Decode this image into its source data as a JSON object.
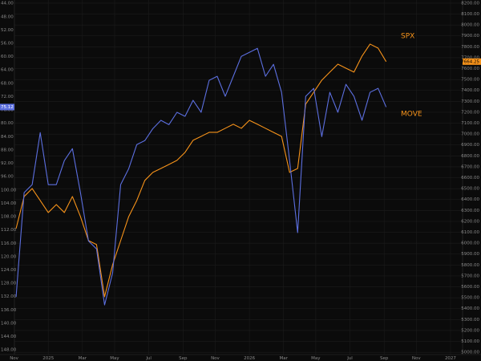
{
  "chart_data": {
    "type": "line",
    "x": [
      2024.84,
      2024.88,
      2024.92,
      2024.96,
      2025.0,
      2025.04,
      2025.08,
      2025.12,
      2025.16,
      2025.2,
      2025.24,
      2025.28,
      2025.32,
      2025.36,
      2025.4,
      2025.44,
      2025.48,
      2025.52,
      2025.56,
      2025.6,
      2025.64,
      2025.68,
      2025.72,
      2025.76,
      2025.8,
      2025.84,
      2025.88,
      2025.92,
      2025.96,
      2026.0,
      2026.04,
      2026.08,
      2026.12,
      2026.16,
      2026.2,
      2026.24,
      2026.28,
      2026.32,
      2026.36,
      2026.4,
      2026.44,
      2026.48,
      2026.52,
      2026.56,
      2026.6,
      2026.64,
      2026.68
    ],
    "series": [
      {
        "name": "SPX",
        "color": "#f7931a",
        "axis": "y2",
        "values": [
          6134,
          6428,
          6501,
          6391,
          6281,
          6354,
          6281,
          6428,
          6244,
          6024,
          5987,
          5509,
          5803,
          6024,
          6244,
          6391,
          6575,
          6649,
          6685,
          6722,
          6759,
          6832,
          6943,
          6979,
          7016,
          7016,
          7053,
          7090,
          7053,
          7126,
          7090,
          7053,
          7016,
          6979,
          6649,
          6685,
          7274,
          7384,
          7494,
          7568,
          7641,
          7604,
          7568,
          7715,
          7825,
          7788,
          7664.25
        ]
      },
      {
        "name": "MOVE",
        "color": "#5c6fe0",
        "values": [
          132.1,
          100.8,
          98.4,
          82.8,
          98.4,
          98.4,
          91.2,
          87.6,
          100.8,
          115.3,
          117.7,
          134.5,
          124.9,
          98.4,
          93.6,
          86.4,
          85.2,
          81.6,
          79.1,
          80.4,
          76.7,
          77.9,
          73.1,
          76.7,
          67.1,
          65.9,
          71.9,
          65.9,
          59.9,
          58.7,
          57.5,
          65.9,
          62.3,
          70.7,
          91.2,
          112.8,
          71.9,
          69.5,
          84.0,
          70.7,
          76.7,
          68.3,
          71.9,
          79.1,
          70.7,
          69.5,
          75.12
        ]
      }
    ],
    "series_label_color": "#f7931a",
    "grid": true,
    "xlim": [
      2024.76,
      2027.06
    ],
    "xticks": [
      {
        "value": 2024.83,
        "label": "Nov"
      },
      2025,
      {
        "value": 2025.17,
        "label": "Mar"
      },
      {
        "value": 2025.33,
        "label": "May"
      },
      {
        "value": 2025.5,
        "label": "Jul"
      },
      {
        "value": 2025.67,
        "label": "Sep"
      },
      {
        "value": 2025.83,
        "label": "Nov"
      },
      2026,
      {
        "value": 2026.17,
        "label": "Mar"
      },
      {
        "value": 2026.33,
        "label": "May"
      },
      {
        "value": 2026.5,
        "label": "Jul"
      },
      {
        "value": 2026.67,
        "label": "Sep"
      },
      {
        "value": 2026.83,
        "label": "Nov"
      },
      2027
    ],
    "ylim": [
      149.4,
      43.0
    ],
    "yticks": [
      {
        "value": 44,
        "label": "44.00"
      },
      {
        "value": 48,
        "label": "48.00"
      },
      {
        "value": 52,
        "label": "52.00"
      },
      {
        "value": 56,
        "label": "56.00"
      },
      {
        "value": 60,
        "label": "60.00"
      },
      {
        "value": 64,
        "label": "64.00"
      },
      {
        "value": 68,
        "label": "68.00"
      },
      {
        "value": 72,
        "label": "72.00"
      },
      {
        "value": 76,
        "label": "76.00"
      },
      {
        "value": 80,
        "label": "80.00"
      },
      {
        "value": 84,
        "label": "84.00"
      },
      {
        "value": 88,
        "label": "88.00"
      },
      {
        "value": 92,
        "label": "92.00"
      },
      {
        "value": 96,
        "label": "96.00"
      },
      {
        "value": 100,
        "label": "100.00"
      },
      {
        "value": 104,
        "label": "104.00"
      },
      {
        "value": 108,
        "label": "108.00"
      },
      {
        "value": 112,
        "label": "112.00"
      },
      {
        "value": 116,
        "label": "116.00"
      },
      {
        "value": 120,
        "label": "120.00"
      },
      {
        "value": 124,
        "label": "124.00"
      },
      {
        "value": 128,
        "label": "128.00"
      },
      {
        "value": 132,
        "label": "132.00"
      },
      {
        "value": 136,
        "label": "136.00"
      },
      {
        "value": 140,
        "label": "140.00"
      },
      {
        "value": 144,
        "label": "144.00"
      },
      {
        "value": 148,
        "label": "148.00"
      }
    ],
    "y2lim": [
      4979,
      8229
    ],
    "y2ticks": [
      {
        "value": 5000,
        "label": "5000.00"
      },
      {
        "value": 5100,
        "label": "5100.00"
      },
      {
        "value": 5200,
        "label": "5200.00"
      },
      {
        "value": 5300,
        "label": "5300.00"
      },
      {
        "value": 5400,
        "label": "5400.00"
      },
      {
        "value": 5500,
        "label": "5500.00"
      },
      {
        "value": 5600,
        "label": "5600.00"
      },
      {
        "value": 5700,
        "label": "5700.00"
      },
      {
        "value": 5800,
        "label": "5800.00"
      },
      {
        "value": 5900,
        "label": "5900.00"
      },
      {
        "value": 6000,
        "label": "6000.00"
      },
      {
        "value": 6100,
        "label": "6100.00"
      },
      {
        "value": 6200,
        "label": "6200.00"
      },
      {
        "value": 6300,
        "label": "6300.00"
      },
      {
        "value": 6400,
        "label": "6400.00"
      },
      {
        "value": 6500,
        "label": "6500.00"
      },
      {
        "value": 6600,
        "label": "6600.00"
      },
      {
        "value": 6700,
        "label": "6700.00"
      },
      {
        "value": 6800,
        "label": "6800.00"
      },
      {
        "value": 6900,
        "label": "6900.00"
      },
      {
        "value": 7000,
        "label": "7000.00"
      },
      {
        "value": 7100,
        "label": "7100.00"
      },
      {
        "value": 7200,
        "label": "7200.00"
      },
      {
        "value": 7300,
        "label": "7300.00"
      },
      {
        "value": 7400,
        "label": "7400.00"
      },
      {
        "value": 7500,
        "label": "7500.00"
      },
      {
        "value": 7600,
        "label": "7600.00"
      },
      {
        "value": 7700,
        "label": "7700.00"
      },
      {
        "value": 7800,
        "label": "7800.00"
      },
      {
        "value": 7900,
        "label": "7900.00"
      },
      {
        "value": 8000,
        "label": "8000.00"
      },
      {
        "value": 8100,
        "label": "8100.00"
      },
      {
        "value": 8200,
        "label": "8200.00"
      }
    ]
  }
}
